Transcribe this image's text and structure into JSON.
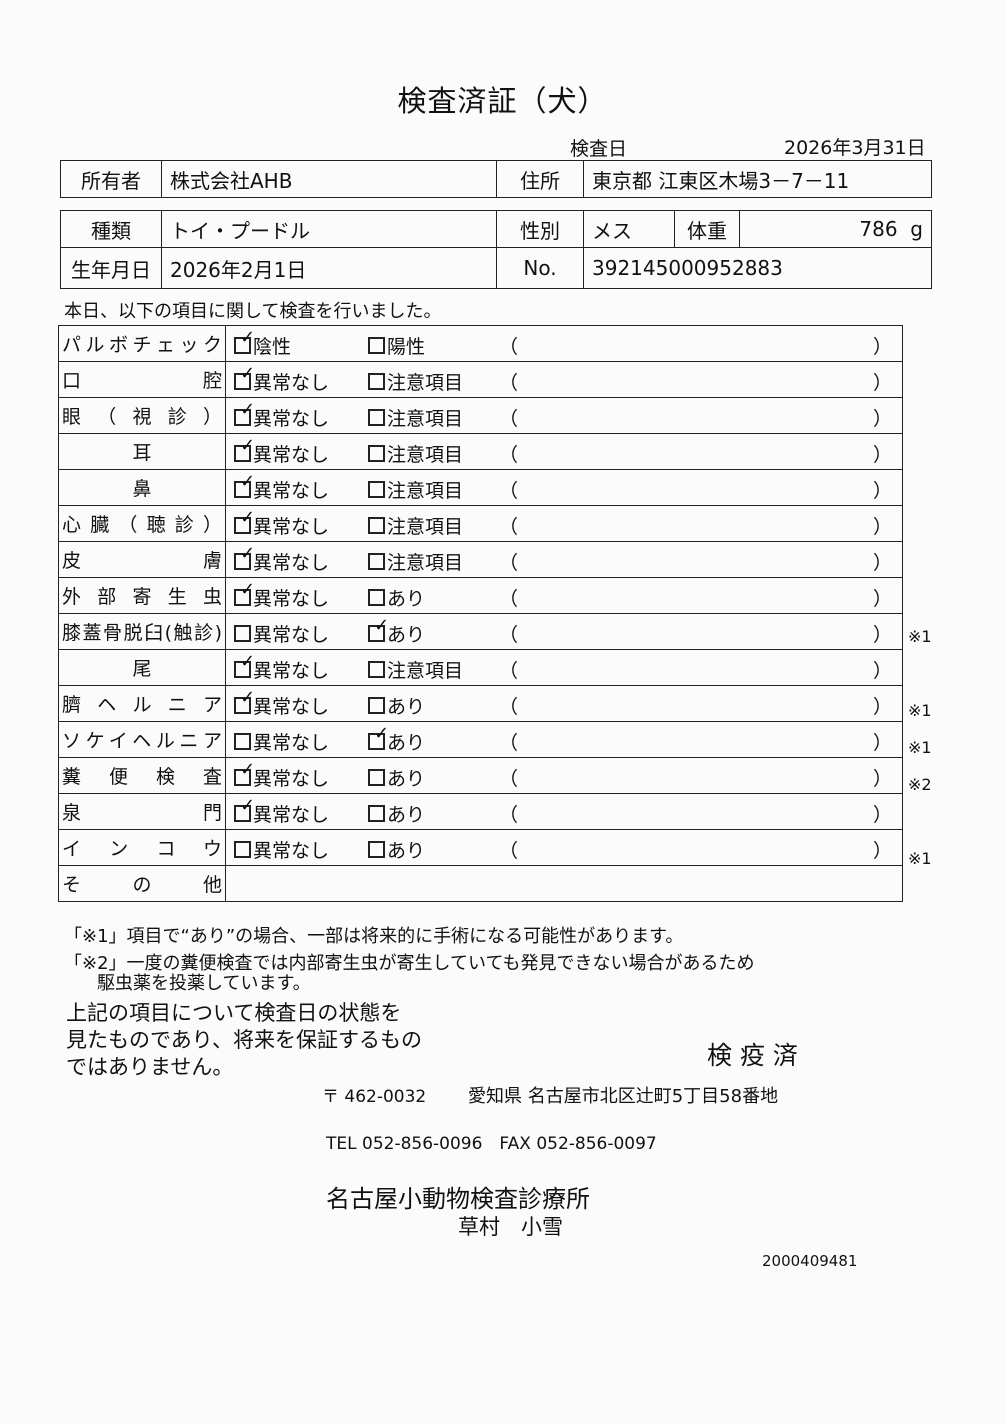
{
  "title": "検査済証（犬）",
  "exam_date_label": "検査日",
  "exam_date": "2026年3月31日",
  "owner": {
    "label": "所有者",
    "value": "株式会社AHB"
  },
  "address": {
    "label": "住所",
    "value": "東京都 江東区木場3－7－11"
  },
  "breed": {
    "label": "種類",
    "value": "トイ・プードル"
  },
  "sex": {
    "label": "性別",
    "value": "メス"
  },
  "weight": {
    "label": "体重",
    "value": "786",
    "unit": "g"
  },
  "birth": {
    "label": "生年月日",
    "value": "2026年2月1日"
  },
  "number": {
    "label": "No.",
    "value": "392145000952883"
  },
  "intro": "本日、以下の項目に関して検査を行いました。",
  "paren_open": "（",
  "paren_close": "）",
  "rows": [
    {
      "label": "パルボチェック",
      "opt1": "陰性",
      "opt2": "陽性",
      "checked": 1,
      "note": ""
    },
    {
      "label": "口腔",
      "opt1": "異常なし",
      "opt2": "注意項目",
      "checked": 1,
      "note": ""
    },
    {
      "label": "眼（視診）",
      "opt1": "異常なし",
      "opt2": "注意項目",
      "checked": 1,
      "note": ""
    },
    {
      "label": "耳",
      "opt1": "異常なし",
      "opt2": "注意項目",
      "checked": 1,
      "note": "",
      "center": true
    },
    {
      "label": "鼻",
      "opt1": "異常なし",
      "opt2": "注意項目",
      "checked": 1,
      "note": "",
      "center": true
    },
    {
      "label": "心臓（聴診）",
      "opt1": "異常なし",
      "opt2": "注意項目",
      "checked": 1,
      "note": ""
    },
    {
      "label": "皮膚",
      "opt1": "異常なし",
      "opt2": "注意項目",
      "checked": 1,
      "note": ""
    },
    {
      "label": "外部寄生虫",
      "opt1": "異常なし",
      "opt2": "あり",
      "checked": 1,
      "note": ""
    },
    {
      "label": "膝蓋骨脱臼(触診)",
      "opt1": "異常なし",
      "opt2": "あり",
      "checked": 2,
      "note": "※1"
    },
    {
      "label": "尾",
      "opt1": "異常なし",
      "opt2": "注意項目",
      "checked": 1,
      "note": "",
      "center": true
    },
    {
      "label": "臍ヘルニア",
      "opt1": "異常なし",
      "opt2": "あり",
      "checked": 1,
      "note": "※1"
    },
    {
      "label": "ソケイヘルニア",
      "opt1": "異常なし",
      "opt2": "あり",
      "checked": 2,
      "note": "※1"
    },
    {
      "label": "糞便検査",
      "opt1": "異常なし",
      "opt2": "あり",
      "checked": 1,
      "note": "※2"
    },
    {
      "label": "泉門",
      "opt1": "異常なし",
      "opt2": "あり",
      "checked": 1,
      "note": ""
    },
    {
      "label": "インコウ",
      "opt1": "異常なし",
      "opt2": "あり",
      "checked": 0,
      "note": "※1"
    },
    {
      "label": "その他",
      "other": true
    }
  ],
  "footnote1": "「※1」項目で“あり”の場合、一部は将来的に手術になる可能性があります。",
  "footnote2a": "「※2」一度の糞便検査では内部寄生虫が寄生していても発見できない場合があるため",
  "footnote2b": "駆虫薬を投薬しています。",
  "disclaimer": [
    "上記の項目について検査日の状態を",
    "見たものであり、将来を保証するもの",
    "ではありません。"
  ],
  "stamp": "検 疫 済",
  "postal": "〒 462-0032",
  "clinic_address": "愛知県 名古屋市北区辻町5丁目58番地",
  "phone": "TEL 052-856-0096　FAX 052-856-0097",
  "clinic_name": "名古屋小動物検査診療所",
  "vet_name": "草村　小雪",
  "doc_number": "2000409481"
}
